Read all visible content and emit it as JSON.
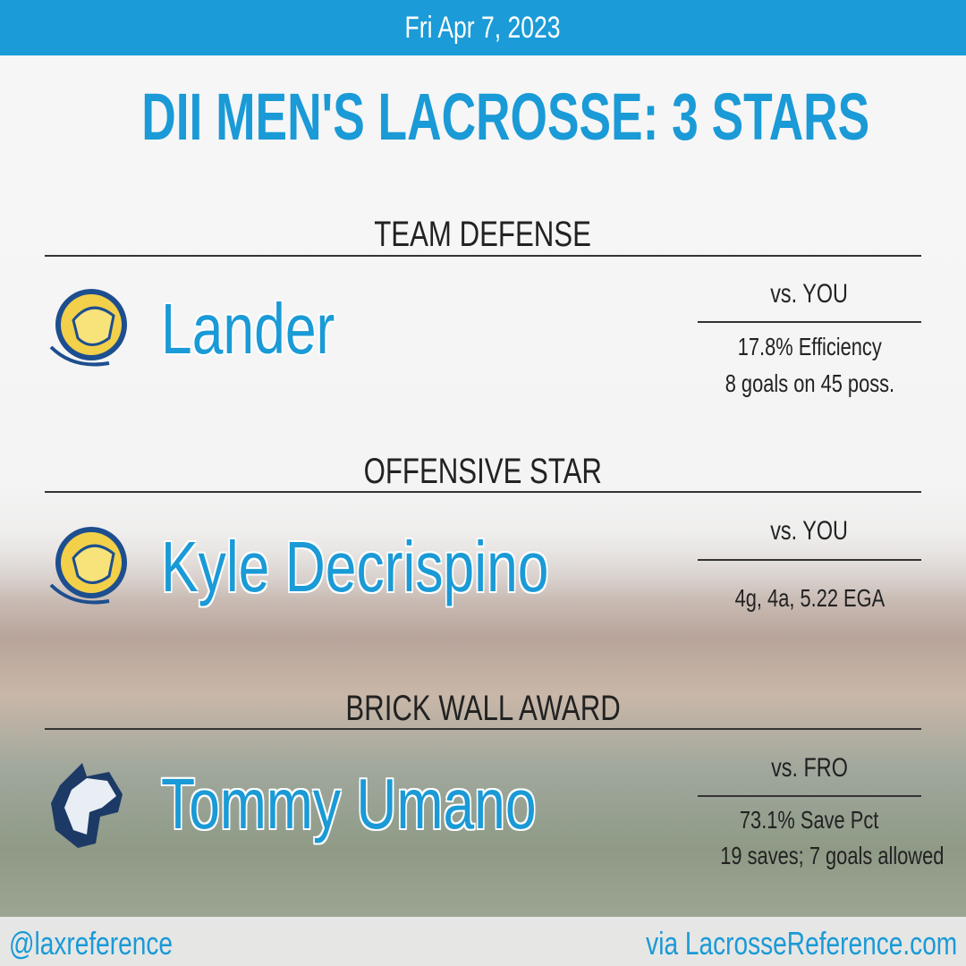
{
  "header": {
    "date": "Fri Apr 7, 2023"
  },
  "title": "DII MEN'S LACROSSE: 3 STARS",
  "sections": [
    {
      "heading": "TEAM DEFENSE",
      "name": "Lander",
      "opponent": "vs. YOU",
      "stats": [
        "17.8% Efficiency",
        "8 goals on 45 poss."
      ]
    },
    {
      "heading": "OFFENSIVE STAR",
      "name": "Kyle Decrispino",
      "opponent": "vs. YOU",
      "stats": [
        "4g, 4a, 5.22 EGA"
      ]
    },
    {
      "heading": "BRICK WALL AWARD",
      "name": "Tommy Umano",
      "opponent": "vs. FRO",
      "stats": [
        "73.1% Save Pct",
        "19 saves; 7 goals allowed"
      ]
    }
  ],
  "footer": {
    "handle": "@laxreference",
    "source": "via LacrosseReference.com"
  }
}
